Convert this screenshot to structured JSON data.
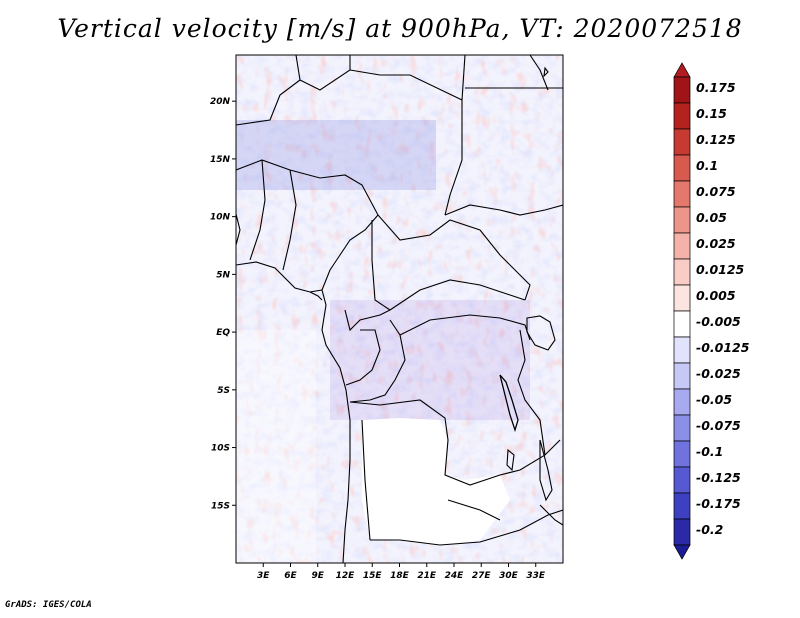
{
  "title": "Vertical velocity [m/s] at 900hPa, VT: 2020072518",
  "footer": "GrADS: IGES/COLA",
  "map": {
    "lon_range": [
      0,
      36
    ],
    "lat_range": [
      -20,
      24
    ],
    "lat_ticks": [
      {
        "lat": 20,
        "label": "20N"
      },
      {
        "lat": 15,
        "label": "15N"
      },
      {
        "lat": 10,
        "label": "10N"
      },
      {
        "lat": 5,
        "label": "5N"
      },
      {
        "lat": 0,
        "label": "EQ"
      },
      {
        "lat": -5,
        "label": "5S"
      },
      {
        "lat": -10,
        "label": "10S"
      },
      {
        "lat": -15,
        "label": "15S"
      }
    ],
    "lon_ticks": [
      {
        "lon": 3,
        "label": "3E"
      },
      {
        "lon": 6,
        "label": "6E"
      },
      {
        "lon": 9,
        "label": "9E"
      },
      {
        "lon": 12,
        "label": "12E"
      },
      {
        "lon": 15,
        "label": "15E"
      },
      {
        "lon": 18,
        "label": "18E"
      },
      {
        "lon": 21,
        "label": "21E"
      },
      {
        "lon": 24,
        "label": "24E"
      },
      {
        "lon": 27,
        "label": "27E"
      },
      {
        "lon": 30,
        "label": "30E"
      },
      {
        "lon": 33,
        "label": "33E"
      }
    ]
  },
  "colorbar": {
    "levels": [
      {
        "label": "0.175",
        "color": "#a01418"
      },
      {
        "label": "0.15",
        "color": "#b3221f"
      },
      {
        "label": "0.125",
        "color": "#c63a32"
      },
      {
        "label": "0.1",
        "color": "#d85a4e"
      },
      {
        "label": "0.075",
        "color": "#e5786c"
      },
      {
        "label": "0.05",
        "color": "#ee958b"
      },
      {
        "label": "0.025",
        "color": "#f5b2aa"
      },
      {
        "label": "0.0125",
        "color": "#f9ccc6"
      },
      {
        "label": "0.005",
        "color": "#fce4e0"
      },
      {
        "label": "-0.005",
        "color": "#ffffff"
      },
      {
        "label": "-0.0125",
        "color": "#e1e2fb"
      },
      {
        "label": "-0.025",
        "color": "#c6c8f6"
      },
      {
        "label": "-0.05",
        "color": "#a8aaf0"
      },
      {
        "label": "-0.075",
        "color": "#8c8fe8"
      },
      {
        "label": "-0.1",
        "color": "#7073de"
      },
      {
        "label": "-0.125",
        "color": "#5659d2"
      },
      {
        "label": "-0.175",
        "color": "#3d40c0"
      },
      {
        "label": "-0.2",
        "color": "#2a2aa8"
      }
    ],
    "top_color": "#b01c20",
    "bottom_color": "#1c1c95"
  }
}
